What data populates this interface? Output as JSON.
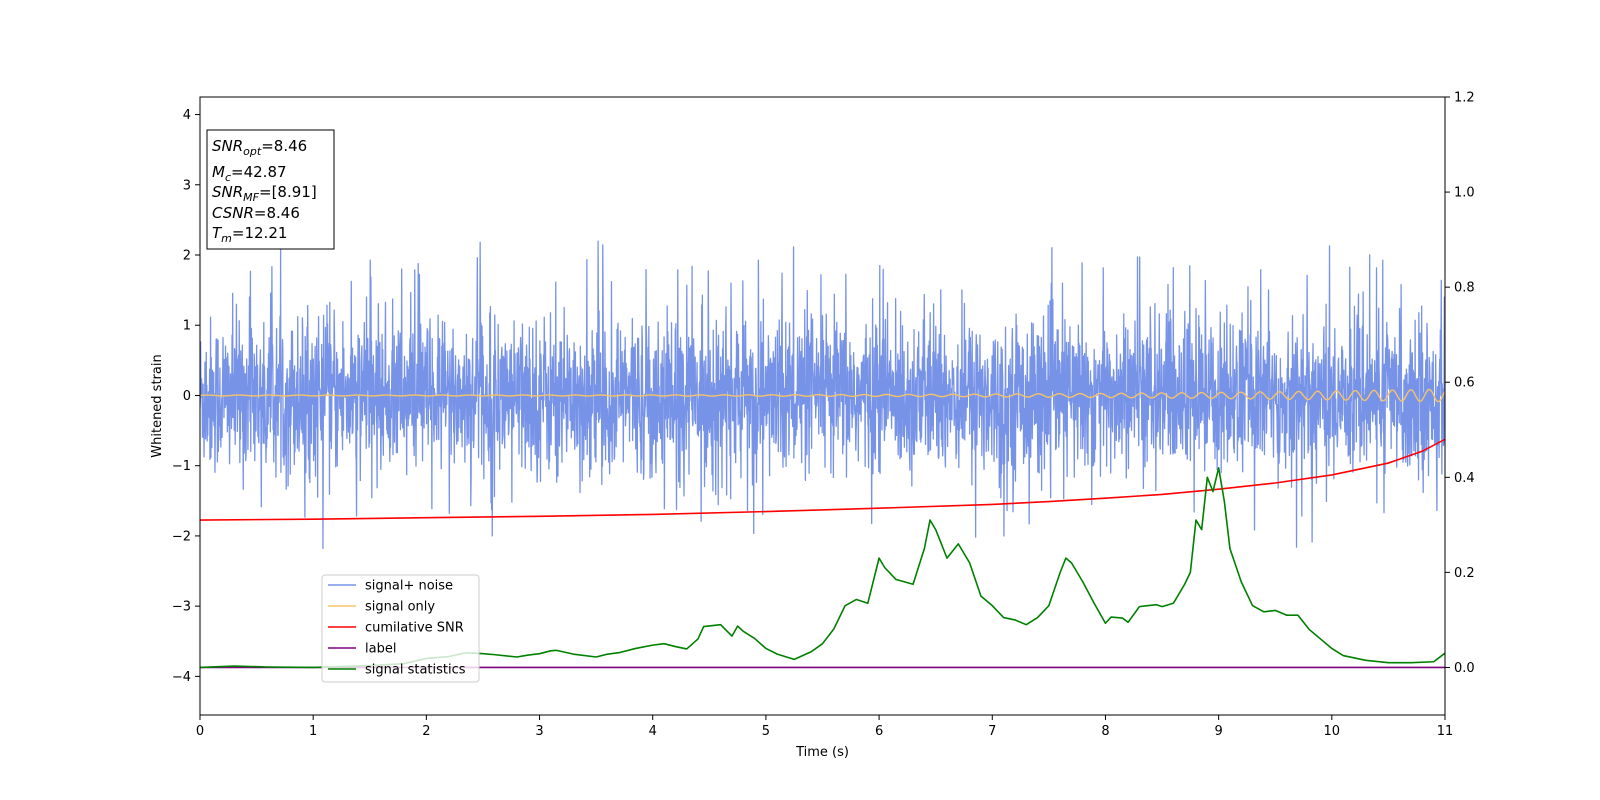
{
  "chart_data": {
    "type": "line",
    "title": "",
    "xlabel": "Time (s)",
    "ylabel": "Whitened strain",
    "xlim": [
      0,
      11
    ],
    "ylim_left": [
      -4.55,
      4.25
    ],
    "ylim_right": [
      -0.1,
      1.2
    ],
    "x_ticks": [
      0,
      1,
      2,
      3,
      4,
      5,
      6,
      7,
      8,
      9,
      10,
      11
    ],
    "y_left_ticks": [
      -4,
      -3,
      -2,
      -1,
      0,
      1,
      2,
      3,
      4
    ],
    "y_right_ticks": [
      "0.0",
      "0.2",
      "0.4",
      "0.6",
      "0.8",
      "1.0",
      "1.2"
    ],
    "grid": false,
    "legend_position": "lower-left",
    "annotation": {
      "lines": [
        {
          "sym": "SNR",
          "sub": "opt",
          "value": "=8.46"
        },
        {
          "sym": "M",
          "sub": "c",
          "value": "=42.87"
        },
        {
          "sym": "SNR",
          "sub": "MF",
          "value": "=[8.91]"
        },
        {
          "sym": "CSNR",
          "sub": "",
          "value": "=8.46"
        },
        {
          "sym": "T",
          "sub": "m",
          "value": "=12.21"
        }
      ]
    },
    "series": [
      {
        "name": "signal+ noise",
        "axis": "left",
        "color": "#7793e8",
        "description": "whitened noise, amplitude about ±1.3 with spikes to ±2.2",
        "amplitude_range": [
          -2.6,
          2.2
        ]
      },
      {
        "name": "signal only",
        "axis": "left",
        "color": "#f5c36a",
        "description": "chirp oscillation near 0 growing toward t=11",
        "amplitude_end": 0.09
      },
      {
        "name": "cumilative SNR",
        "axis": "right",
        "color": "#ff0000",
        "x": [
          0,
          1,
          2,
          3,
          4,
          5,
          6,
          7,
          7.5,
          8,
          8.5,
          9,
          9.5,
          10,
          10.5,
          10.8,
          11
        ],
        "y": [
          0.31,
          0.312,
          0.315,
          0.318,
          0.322,
          0.328,
          0.335,
          0.343,
          0.349,
          0.356,
          0.364,
          0.375,
          0.388,
          0.405,
          0.43,
          0.455,
          0.48
        ]
      },
      {
        "name": "label",
        "axis": "right",
        "color": "#800080",
        "x": [
          0,
          11
        ],
        "y": [
          0.0,
          0.0
        ]
      },
      {
        "name": "signal statistics",
        "axis": "right",
        "color": "#008000",
        "x": [
          0,
          0.3,
          0.6,
          1.0,
          1.5,
          1.8,
          2.0,
          2.2,
          2.35,
          2.5,
          2.6,
          2.8,
          2.9,
          3.0,
          3.1,
          3.15,
          3.3,
          3.5,
          3.6,
          3.7,
          3.85,
          4.0,
          4.1,
          4.2,
          4.3,
          4.4,
          4.45,
          4.6,
          4.7,
          4.75,
          4.8,
          4.9,
          5.0,
          5.1,
          5.25,
          5.4,
          5.5,
          5.6,
          5.7,
          5.8,
          5.9,
          6.0,
          6.05,
          6.15,
          6.3,
          6.4,
          6.45,
          6.5,
          6.6,
          6.7,
          6.8,
          6.9,
          7.0,
          7.1,
          7.2,
          7.3,
          7.4,
          7.5,
          7.6,
          7.65,
          7.7,
          7.8,
          7.9,
          8.0,
          8.05,
          8.15,
          8.2,
          8.3,
          8.45,
          8.5,
          8.6,
          8.7,
          8.75,
          8.8,
          8.85,
          8.9,
          8.95,
          9.0,
          9.05,
          9.1,
          9.2,
          9.3,
          9.4,
          9.5,
          9.6,
          9.7,
          9.8,
          9.9,
          10.0,
          10.1,
          10.3,
          10.5,
          10.7,
          10.9,
          11.0
        ],
        "y": [
          0.0,
          0.003,
          0.001,
          0.0,
          0.004,
          0.008,
          0.019,
          0.023,
          0.031,
          0.029,
          0.027,
          0.022,
          0.026,
          0.029,
          0.035,
          0.036,
          0.028,
          0.022,
          0.028,
          0.031,
          0.04,
          0.047,
          0.05,
          0.044,
          0.039,
          0.06,
          0.086,
          0.09,
          0.066,
          0.087,
          0.076,
          0.061,
          0.04,
          0.028,
          0.017,
          0.033,
          0.05,
          0.081,
          0.13,
          0.143,
          0.135,
          0.23,
          0.21,
          0.185,
          0.175,
          0.25,
          0.31,
          0.29,
          0.23,
          0.26,
          0.22,
          0.15,
          0.13,
          0.105,
          0.1,
          0.09,
          0.105,
          0.13,
          0.2,
          0.23,
          0.22,
          0.18,
          0.135,
          0.093,
          0.106,
          0.104,
          0.095,
          0.128,
          0.132,
          0.128,
          0.135,
          0.175,
          0.2,
          0.31,
          0.29,
          0.4,
          0.37,
          0.42,
          0.35,
          0.25,
          0.18,
          0.13,
          0.117,
          0.12,
          0.11,
          0.11,
          0.08,
          0.06,
          0.04,
          0.025,
          0.015,
          0.01,
          0.01,
          0.012,
          0.03
        ]
      }
    ]
  }
}
